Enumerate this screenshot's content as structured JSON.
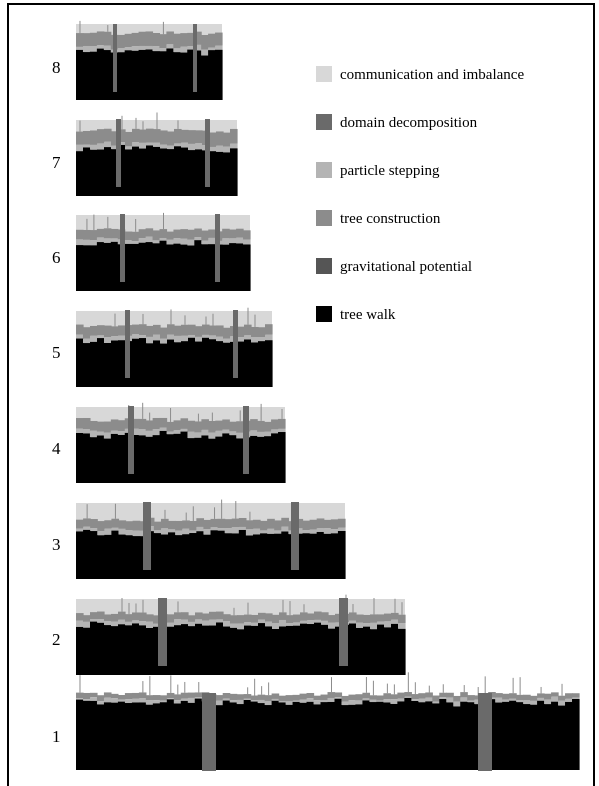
{
  "chart_data": {
    "type": "bar",
    "title": "",
    "xlabel": "",
    "ylabel": "",
    "categories": [
      "8",
      "7",
      "6",
      "5",
      "4",
      "3",
      "2",
      "1"
    ],
    "series": [
      {
        "name": "communication and imbalance",
        "color": "#d8d8d8"
      },
      {
        "name": "domain decomposition",
        "color": "#6a6a6a"
      },
      {
        "name": "particle stepping",
        "color": "#b4b4b4"
      },
      {
        "name": "tree construction",
        "color": "#8c8c8c"
      },
      {
        "name": "gravitational potential",
        "color": "#555555"
      },
      {
        "name": "tree walk",
        "color": "#000000"
      }
    ],
    "relative_wallclock_time": [
      0.29,
      0.32,
      0.345,
      0.39,
      0.415,
      0.535,
      0.655,
      1.0
    ],
    "fraction_of_panel": {
      "tree_walk": [
        0.64,
        0.62,
        0.62,
        0.6,
        0.63,
        0.6,
        0.65,
        0.89
      ],
      "gravitational_potential": [
        0.0,
        0.0,
        0.0,
        0.0,
        0.0,
        0.0,
        0.0,
        0.0
      ],
      "tree_construction": [
        0.18,
        0.18,
        0.12,
        0.14,
        0.14,
        0.12,
        0.1,
        0.07
      ],
      "particle_stepping": [
        0.06,
        0.06,
        0.06,
        0.06,
        0.06,
        0.06,
        0.06,
        0.04
      ],
      "communication_and_imbalance": [
        0.12,
        0.14,
        0.2,
        0.2,
        0.17,
        0.22,
        0.19,
        0.0
      ]
    },
    "domain_decomposition_steps_per_panel": 2,
    "grid": false,
    "legend_position": "top-right"
  },
  "legend": {
    "items": [
      {
        "label": "communication and imbalance",
        "color": "#d8d8d8"
      },
      {
        "label": "domain decomposition",
        "color": "#6a6a6a"
      },
      {
        "label": "particle stepping",
        "color": "#b4b4b4"
      },
      {
        "label": "tree construction",
        "color": "#8c8c8c"
      },
      {
        "label": "gravitational potential",
        "color": "#555555"
      },
      {
        "label": "tree walk",
        "color": "#000000"
      }
    ]
  }
}
